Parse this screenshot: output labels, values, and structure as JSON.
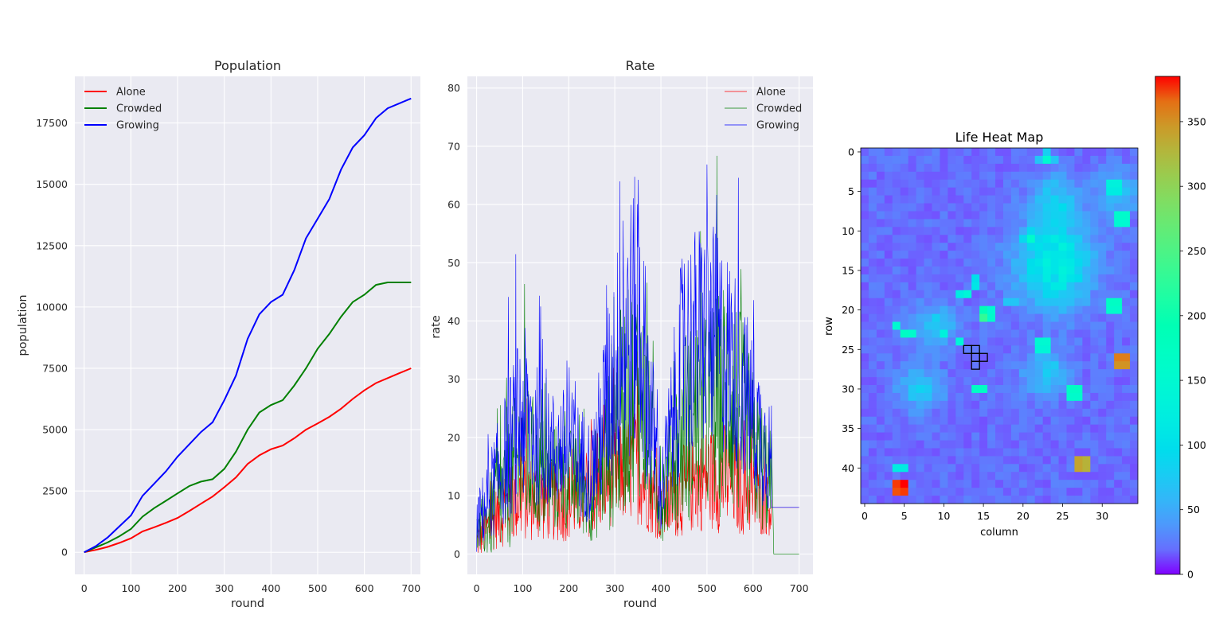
{
  "chart_data": [
    {
      "type": "line",
      "title": "Population",
      "xlabel": "round",
      "ylabel": "population",
      "xlim": [
        -20,
        720
      ],
      "ylim": [
        -900,
        19400
      ],
      "xticks": [
        0,
        100,
        200,
        300,
        400,
        500,
        600,
        700
      ],
      "yticks": [
        0,
        2500,
        5000,
        7500,
        10000,
        12500,
        15000,
        17500
      ],
      "grid": true,
      "legend": "top-left",
      "x": [
        0,
        25,
        50,
        75,
        100,
        125,
        150,
        175,
        200,
        225,
        250,
        275,
        300,
        325,
        350,
        375,
        400,
        425,
        450,
        475,
        500,
        525,
        550,
        575,
        600,
        625,
        650,
        675,
        700
      ],
      "series": [
        {
          "name": "Alone",
          "color": "#ff0000",
          "values": [
            0,
            100,
            220,
            380,
            570,
            850,
            1020,
            1200,
            1400,
            1680,
            1980,
            2270,
            2650,
            3050,
            3600,
            3950,
            4200,
            4350,
            4650,
            5000,
            5250,
            5520,
            5850,
            6250,
            6600,
            6900,
            7100,
            7300,
            7500
          ]
        },
        {
          "name": "Crowded",
          "color": "#008000",
          "values": [
            0,
            200,
            400,
            650,
            950,
            1450,
            1800,
            2100,
            2400,
            2700,
            2880,
            2980,
            3400,
            4100,
            5000,
            5700,
            6000,
            6200,
            6800,
            7500,
            8300,
            8900,
            9600,
            10200,
            10500,
            10900,
            11000,
            11000,
            11000
          ]
        },
        {
          "name": "Growing",
          "color": "#0000ff",
          "values": [
            0,
            250,
            600,
            1050,
            1500,
            2300,
            2800,
            3300,
            3900,
            4400,
            4900,
            5300,
            6200,
            7200,
            8700,
            9700,
            10200,
            10500,
            11500,
            12800,
            13600,
            14400,
            15600,
            16500,
            17000,
            17700,
            18100,
            18300,
            18500
          ]
        }
      ]
    },
    {
      "type": "line",
      "title": "Rate",
      "xlabel": "round",
      "ylabel": "rate",
      "xlim": [
        -20,
        730
      ],
      "ylim": [
        -3.5,
        82
      ],
      "xticks": [
        0,
        100,
        200,
        300,
        400,
        500,
        600,
        700
      ],
      "yticks": [
        0,
        10,
        20,
        30,
        40,
        50,
        60,
        70,
        80
      ],
      "grid": true,
      "legend": "top-right",
      "x_range": [
        0,
        700
      ],
      "series": [
        {
          "name": "Alone",
          "color": "#ff0000",
          "envelope": [
            [
              0,
              2,
              3
            ],
            [
              50,
              7,
              6
            ],
            [
              100,
              10,
              8
            ],
            [
              150,
              9,
              7
            ],
            [
              200,
              9,
              7
            ],
            [
              250,
              10,
              7
            ],
            [
              300,
              14,
              9
            ],
            [
              350,
              15,
              10
            ],
            [
              400,
              7,
              5
            ],
            [
              450,
              11,
              8
            ],
            [
              500,
              13,
              9
            ],
            [
              550,
              13,
              10
            ],
            [
              600,
              10,
              7
            ],
            [
              640,
              8,
              5
            ]
          ],
          "tail": [
            [
              640,
              8
            ],
            [
              700,
              8
            ]
          ]
        },
        {
          "name": "Crowded",
          "color": "#008000",
          "envelope": [
            [
              0,
              3,
              4
            ],
            [
              50,
              9,
              10
            ],
            [
              100,
              17,
              14
            ],
            [
              150,
              13,
              10
            ],
            [
              200,
              13,
              9
            ],
            [
              250,
              10,
              8
            ],
            [
              300,
              22,
              18
            ],
            [
              350,
              30,
              20
            ],
            [
              400,
              9,
              7
            ],
            [
              450,
              22,
              17
            ],
            [
              500,
              24,
              18
            ],
            [
              550,
              28,
              22
            ],
            [
              600,
              18,
              14
            ],
            [
              640,
              12,
              9
            ]
          ],
          "tail": [
            [
              645,
              0
            ],
            [
              700,
              0
            ]
          ]
        },
        {
          "name": "Growing",
          "color": "#0000ff",
          "envelope": [
            [
              0,
              5,
              5
            ],
            [
              50,
              14,
              10
            ],
            [
              100,
              24,
              16
            ],
            [
              150,
              18,
              10
            ],
            [
              200,
              18,
              11
            ],
            [
              250,
              14,
              9
            ],
            [
              300,
              32,
              20
            ],
            [
              350,
              42,
              25
            ],
            [
              400,
              10,
              7
            ],
            [
              450,
              35,
              20
            ],
            [
              500,
              38,
              20
            ],
            [
              550,
              34,
              18
            ],
            [
              600,
              24,
              14
            ],
            [
              640,
              16,
              10
            ]
          ],
          "tail": [
            [
              640,
              8
            ],
            [
              700,
              8
            ]
          ]
        }
      ]
    },
    {
      "type": "heatmap",
      "title": "Life Heat Map",
      "xlabel": "column",
      "ylabel": "row",
      "rows": 45,
      "cols": 35,
      "xticks": [
        0,
        5,
        10,
        15,
        20,
        25,
        30
      ],
      "yticks": [
        0,
        5,
        10,
        15,
        20,
        25,
        30,
        35,
        40
      ],
      "colormap": "rainbow",
      "vmin": 0,
      "vmax": 385,
      "colorbar_ticks": [
        0,
        50,
        100,
        150,
        200,
        250,
        300,
        350
      ],
      "background_value": 10,
      "blobs": [
        [
          14,
          24,
          6,
          5,
          110
        ],
        [
          6,
          24,
          3,
          3,
          60
        ],
        [
          22,
          9,
          3,
          3,
          50
        ],
        [
          30,
          7,
          3,
          3,
          50
        ],
        [
          28,
          23,
          3,
          3,
          55
        ],
        [
          5,
          32,
          3,
          3,
          45
        ]
      ],
      "hot_cells": [
        [
          1,
          23,
          150
        ],
        [
          1,
          22,
          70
        ],
        [
          1,
          24,
          70
        ],
        [
          0,
          23,
          80
        ],
        [
          4,
          31,
          130
        ],
        [
          4,
          32,
          130
        ],
        [
          5,
          31,
          120
        ],
        [
          5,
          32,
          120
        ],
        [
          8,
          32,
          160
        ],
        [
          8,
          33,
          160
        ],
        [
          9,
          32,
          150
        ],
        [
          9,
          33,
          150
        ],
        [
          11,
          21,
          160
        ],
        [
          10,
          21,
          90
        ],
        [
          12,
          21,
          90
        ],
        [
          11,
          20,
          90
        ],
        [
          11,
          22,
          90
        ],
        [
          16,
          14,
          100
        ],
        [
          17,
          14,
          110
        ],
        [
          18,
          12,
          120
        ],
        [
          18,
          13,
          140
        ],
        [
          19,
          18,
          70
        ],
        [
          19,
          19,
          70
        ],
        [
          19,
          31,
          170
        ],
        [
          19,
          32,
          170
        ],
        [
          20,
          31,
          160
        ],
        [
          20,
          32,
          160
        ],
        [
          20,
          15,
          190
        ],
        [
          21,
          15,
          230
        ],
        [
          21,
          16,
          160
        ],
        [
          20,
          16,
          150
        ],
        [
          22,
          4,
          150
        ],
        [
          23,
          5,
          170
        ],
        [
          23,
          6,
          160
        ],
        [
          23,
          10,
          130
        ],
        [
          24,
          12,
          140
        ],
        [
          24,
          22,
          150
        ],
        [
          24,
          23,
          150
        ],
        [
          25,
          22,
          140
        ],
        [
          25,
          23,
          140
        ],
        [
          26,
          32,
          360
        ],
        [
          26,
          33,
          360
        ],
        [
          27,
          32,
          350
        ],
        [
          27,
          33,
          350
        ],
        [
          30,
          14,
          170
        ],
        [
          30,
          15,
          170
        ],
        [
          30,
          26,
          170
        ],
        [
          30,
          27,
          170
        ],
        [
          31,
          26,
          160
        ],
        [
          31,
          27,
          160
        ],
        [
          39,
          27,
          340
        ],
        [
          39,
          28,
          330
        ],
        [
          40,
          27,
          340
        ],
        [
          40,
          28,
          330
        ],
        [
          40,
          4,
          120
        ],
        [
          40,
          5,
          120
        ],
        [
          42,
          4,
          380
        ],
        [
          42,
          5,
          385
        ],
        [
          43,
          4,
          375
        ],
        [
          43,
          5,
          380
        ]
      ],
      "outlined_cells": [
        [
          25,
          13
        ],
        [
          25,
          14
        ],
        [
          26,
          14
        ],
        [
          26,
          15
        ],
        [
          27,
          14
        ]
      ]
    }
  ]
}
